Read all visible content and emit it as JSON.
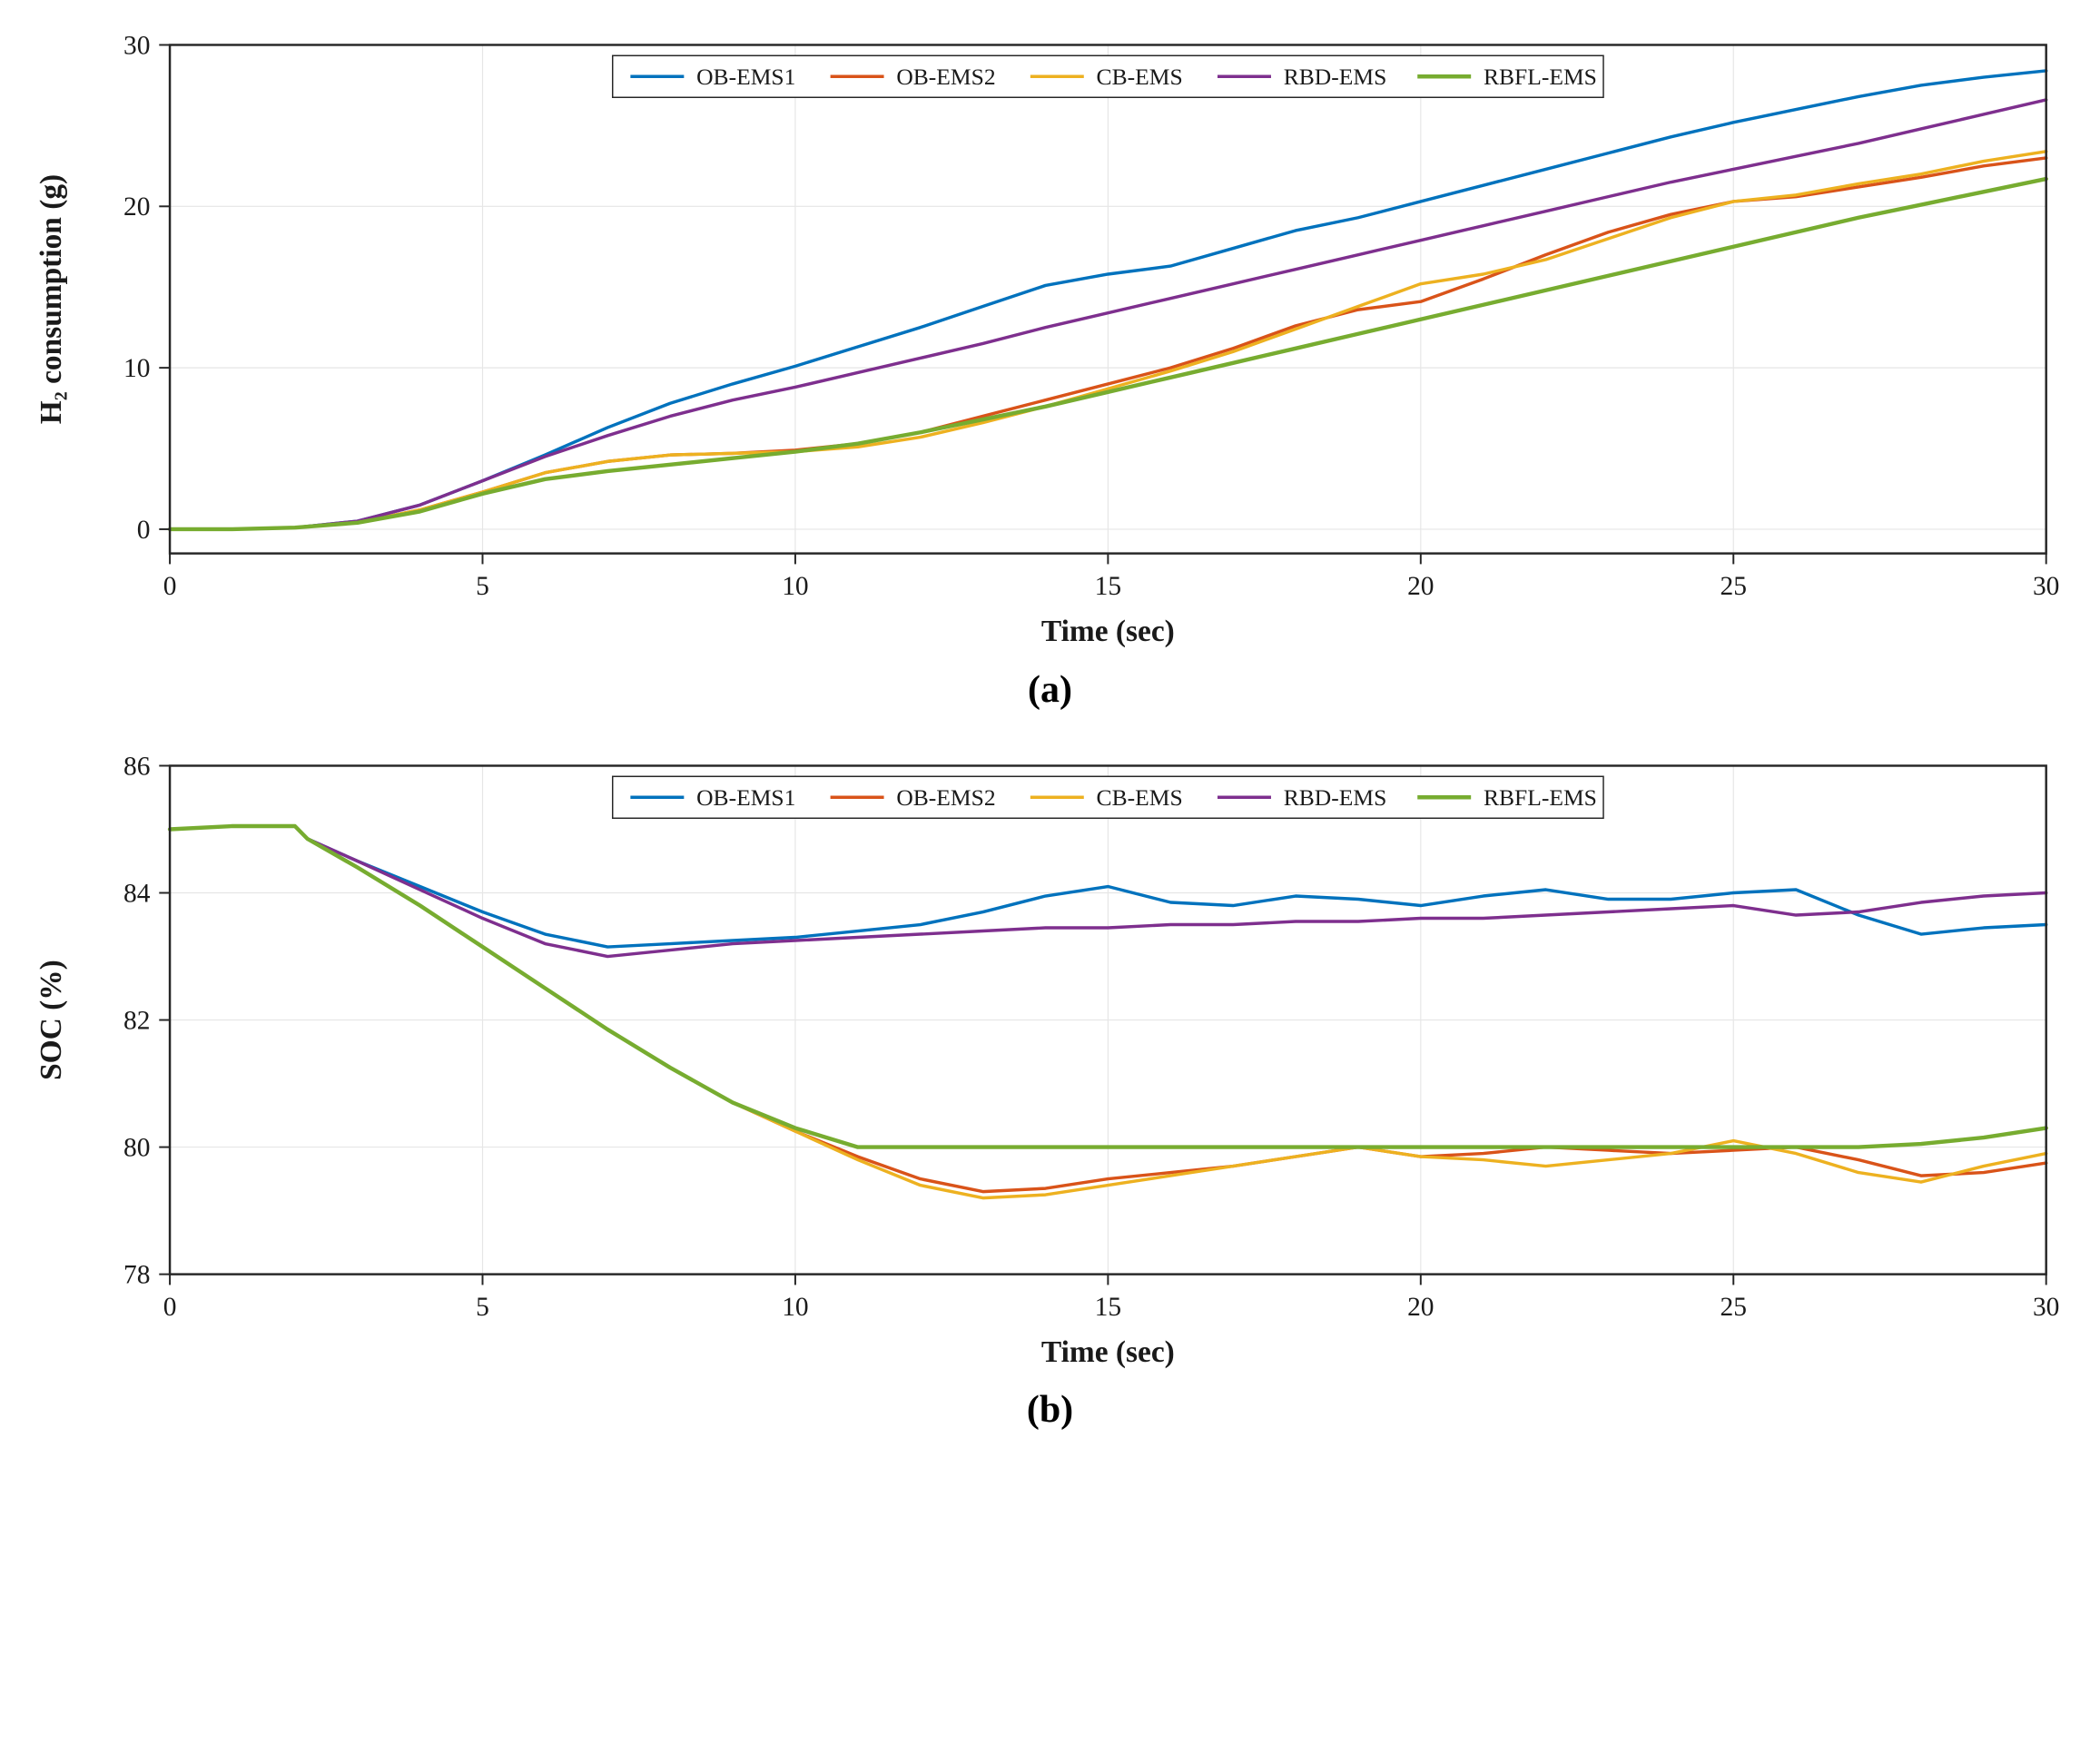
{
  "figure": {
    "background_color": "#ffffff",
    "font_family": "Times New Roman",
    "subplots": [
      {
        "id": "a",
        "sublabel": "(a)",
        "type": "line",
        "xlabel": "Time (sec)",
        "ylabel": "H₂ consumption (g)",
        "label_fontsize": 34,
        "label_fontweight": "bold",
        "tick_fontsize": 30,
        "xlim": [
          0,
          30
        ],
        "ylim": [
          -1.5,
          30
        ],
        "xticks": [
          0,
          5,
          10,
          15,
          20,
          25,
          30
        ],
        "yticks": [
          0,
          10,
          20,
          30
        ],
        "grid_color": "#e6e6e6",
        "grid_width": 1.2,
        "axes_color": "#262626",
        "axes_width": 2.5,
        "plot_bg": "#ffffff",
        "legend": {
          "position": "top-center",
          "border_color": "#262626",
          "border_width": 1.5,
          "bg_color": "#ffffff",
          "fontsize": 26,
          "items": [
            "OB-EMS1",
            "OB-EMS2",
            "CB-EMS",
            "RBD-EMS",
            "RBFL-EMS"
          ]
        },
        "series": [
          {
            "name": "OB-EMS1",
            "color": "#0072bd",
            "line_width": 3.5,
            "x": [
              0,
              1,
              2,
              3,
              4,
              5,
              6,
              7,
              8,
              9,
              10,
              11,
              12,
              13,
              14,
              15,
              16,
              17,
              18,
              19,
              20,
              21,
              22,
              23,
              24,
              25,
              26,
              27,
              28,
              29,
              30
            ],
            "y": [
              0,
              0,
              0.1,
              0.5,
              1.5,
              3.0,
              4.6,
              6.3,
              7.8,
              9.0,
              10.1,
              11.3,
              12.5,
              13.8,
              15.1,
              15.8,
              16.3,
              17.4,
              18.5,
              19.3,
              20.3,
              21.3,
              22.3,
              23.3,
              24.3,
              25.2,
              26.0,
              26.8,
              27.5,
              28.0,
              28.4
            ]
          },
          {
            "name": "OB-EMS2",
            "color": "#d95319",
            "line_width": 3.5,
            "x": [
              0,
              1,
              2,
              3,
              4,
              5,
              6,
              7,
              8,
              9,
              10,
              11,
              12,
              13,
              14,
              15,
              16,
              17,
              18,
              19,
              20,
              21,
              22,
              23,
              24,
              25,
              26,
              27,
              28,
              29,
              30
            ],
            "y": [
              0,
              0,
              0.1,
              0.4,
              1.2,
              2.3,
              3.5,
              4.2,
              4.6,
              4.7,
              4.9,
              5.3,
              6.0,
              7.0,
              8.0,
              9.0,
              10.0,
              11.2,
              12.6,
              13.6,
              14.1,
              15.5,
              17.0,
              18.4,
              19.5,
              20.3,
              20.6,
              21.2,
              21.8,
              22.5,
              23.0
            ]
          },
          {
            "name": "CB-EMS",
            "color": "#edb120",
            "line_width": 3.5,
            "x": [
              0,
              1,
              2,
              3,
              4,
              5,
              6,
              7,
              8,
              9,
              10,
              11,
              12,
              13,
              14,
              15,
              16,
              17,
              18,
              19,
              20,
              21,
              22,
              23,
              24,
              25,
              26,
              27,
              28,
              29,
              30
            ],
            "y": [
              0,
              0,
              0.1,
              0.4,
              1.2,
              2.3,
              3.5,
              4.2,
              4.6,
              4.7,
              4.8,
              5.1,
              5.7,
              6.6,
              7.6,
              8.7,
              9.8,
              11.0,
              12.4,
              13.8,
              15.2,
              15.8,
              16.7,
              18.0,
              19.3,
              20.3,
              20.7,
              21.4,
              22.0,
              22.8,
              23.4
            ]
          },
          {
            "name": "RBD-EMS",
            "color": "#7e2f8e",
            "line_width": 3.5,
            "x": [
              0,
              1,
              2,
              3,
              4,
              5,
              6,
              7,
              8,
              9,
              10,
              11,
              12,
              13,
              14,
              15,
              16,
              17,
              18,
              19,
              20,
              21,
              22,
              23,
              24,
              25,
              26,
              27,
              28,
              29,
              30
            ],
            "y": [
              0,
              0,
              0.1,
              0.5,
              1.5,
              3.0,
              4.5,
              5.8,
              7.0,
              8.0,
              8.8,
              9.7,
              10.6,
              11.5,
              12.5,
              13.4,
              14.3,
              15.2,
              16.1,
              17.0,
              17.9,
              18.8,
              19.7,
              20.6,
              21.5,
              22.3,
              23.1,
              23.9,
              24.8,
              25.7,
              26.6
            ]
          },
          {
            "name": "RBFL-EMS",
            "color": "#77ac30",
            "line_width": 4.5,
            "x": [
              0,
              1,
              2,
              3,
              4,
              5,
              6,
              7,
              8,
              9,
              10,
              11,
              12,
              13,
              14,
              15,
              16,
              17,
              18,
              19,
              20,
              21,
              22,
              23,
              24,
              25,
              26,
              27,
              28,
              29,
              30
            ],
            "y": [
              0,
              0,
              0.1,
              0.4,
              1.1,
              2.2,
              3.1,
              3.6,
              4.0,
              4.4,
              4.8,
              5.3,
              6.0,
              6.8,
              7.6,
              8.5,
              9.4,
              10.3,
              11.2,
              12.1,
              13.0,
              13.9,
              14.8,
              15.7,
              16.6,
              17.5,
              18.4,
              19.3,
              20.1,
              20.9,
              21.7
            ]
          }
        ]
      },
      {
        "id": "b",
        "sublabel": "(b)",
        "type": "line",
        "xlabel": "Time (sec)",
        "ylabel": "SOC (%)",
        "label_fontsize": 34,
        "label_fontweight": "bold",
        "tick_fontsize": 30,
        "xlim": [
          0,
          30
        ],
        "ylim": [
          78,
          86
        ],
        "xticks": [
          0,
          5,
          10,
          15,
          20,
          25,
          30
        ],
        "yticks": [
          78,
          80,
          82,
          84,
          86
        ],
        "grid_color": "#e6e6e6",
        "grid_width": 1.2,
        "axes_color": "#262626",
        "axes_width": 2.5,
        "plot_bg": "#ffffff",
        "legend": {
          "position": "top-center",
          "border_color": "#262626",
          "border_width": 1.5,
          "bg_color": "#ffffff",
          "fontsize": 26,
          "items": [
            "OB-EMS1",
            "OB-EMS2",
            "CB-EMS",
            "RBD-EMS",
            "RBFL-EMS"
          ]
        },
        "series": [
          {
            "name": "OB-EMS1",
            "color": "#0072bd",
            "line_width": 3.5,
            "x": [
              0,
              1,
              2,
              2.2,
              3,
              4,
              5,
              6,
              7,
              8,
              9,
              10,
              11,
              12,
              13,
              14,
              15,
              16,
              17,
              18,
              19,
              20,
              21,
              22,
              23,
              24,
              25,
              26,
              27,
              28,
              29,
              30
            ],
            "y": [
              85,
              85.05,
              85.05,
              84.85,
              84.5,
              84.1,
              83.7,
              83.35,
              83.15,
              83.2,
              83.25,
              83.3,
              83.4,
              83.5,
              83.7,
              83.95,
              84.1,
              83.85,
              83.8,
              83.95,
              83.9,
              83.8,
              83.95,
              84.05,
              83.9,
              83.9,
              84.0,
              84.05,
              83.65,
              83.35,
              83.45,
              83.5
            ]
          },
          {
            "name": "OB-EMS2",
            "color": "#d95319",
            "line_width": 3.5,
            "x": [
              0,
              1,
              2,
              2.2,
              3,
              4,
              5,
              6,
              7,
              8,
              9,
              10,
              11,
              12,
              13,
              14,
              15,
              16,
              17,
              18,
              19,
              20,
              21,
              22,
              23,
              24,
              25,
              26,
              27,
              28,
              29,
              30
            ],
            "y": [
              85,
              85.05,
              85.05,
              84.85,
              84.4,
              83.8,
              83.15,
              82.5,
              81.85,
              81.25,
              80.7,
              80.25,
              79.85,
              79.5,
              79.3,
              79.35,
              79.5,
              79.6,
              79.7,
              79.85,
              80.0,
              79.85,
              79.9,
              80.0,
              79.95,
              79.9,
              79.95,
              80.0,
              79.8,
              79.55,
              79.6,
              79.75
            ]
          },
          {
            "name": "CB-EMS",
            "color": "#edb120",
            "line_width": 3.5,
            "x": [
              0,
              1,
              2,
              2.2,
              3,
              4,
              5,
              6,
              7,
              8,
              9,
              10,
              11,
              12,
              13,
              14,
              15,
              16,
              17,
              18,
              19,
              20,
              21,
              22,
              23,
              24,
              25,
              26,
              27,
              28,
              29,
              30
            ],
            "y": [
              85,
              85.05,
              85.05,
              84.85,
              84.4,
              83.8,
              83.15,
              82.5,
              81.85,
              81.25,
              80.7,
              80.25,
              79.8,
              79.4,
              79.2,
              79.25,
              79.4,
              79.55,
              79.7,
              79.85,
              80.0,
              79.85,
              79.8,
              79.7,
              79.8,
              79.9,
              80.1,
              79.9,
              79.6,
              79.45,
              79.7,
              79.9
            ]
          },
          {
            "name": "RBD-EMS",
            "color": "#7e2f8e",
            "line_width": 3.5,
            "x": [
              0,
              1,
              2,
              2.2,
              3,
              4,
              5,
              6,
              7,
              8,
              9,
              10,
              11,
              12,
              13,
              14,
              15,
              16,
              17,
              18,
              19,
              20,
              21,
              22,
              23,
              24,
              25,
              26,
              27,
              28,
              29,
              30
            ],
            "y": [
              85,
              85.05,
              85.05,
              84.85,
              84.5,
              84.05,
              83.6,
              83.2,
              83.0,
              83.1,
              83.2,
              83.25,
              83.3,
              83.35,
              83.4,
              83.45,
              83.45,
              83.5,
              83.5,
              83.55,
              83.55,
              83.6,
              83.6,
              83.65,
              83.7,
              83.75,
              83.8,
              83.65,
              83.7,
              83.85,
              83.95,
              84.0
            ]
          },
          {
            "name": "RBFL-EMS",
            "color": "#77ac30",
            "line_width": 4.5,
            "x": [
              0,
              1,
              2,
              2.2,
              3,
              4,
              5,
              6,
              7,
              8,
              9,
              10,
              11,
              12,
              13,
              14,
              15,
              16,
              17,
              18,
              19,
              20,
              21,
              22,
              23,
              24,
              25,
              26,
              27,
              28,
              29,
              30
            ],
            "y": [
              85,
              85.05,
              85.05,
              84.85,
              84.4,
              83.8,
              83.15,
              82.5,
              81.85,
              81.25,
              80.7,
              80.3,
              80.0,
              80.0,
              80.0,
              80.0,
              80.0,
              80.0,
              80.0,
              80.0,
              80.0,
              80.0,
              80.0,
              80.0,
              80.0,
              80.0,
              80.0,
              80.0,
              80.0,
              80.05,
              80.15,
              80.3
            ]
          }
        ]
      }
    ]
  }
}
